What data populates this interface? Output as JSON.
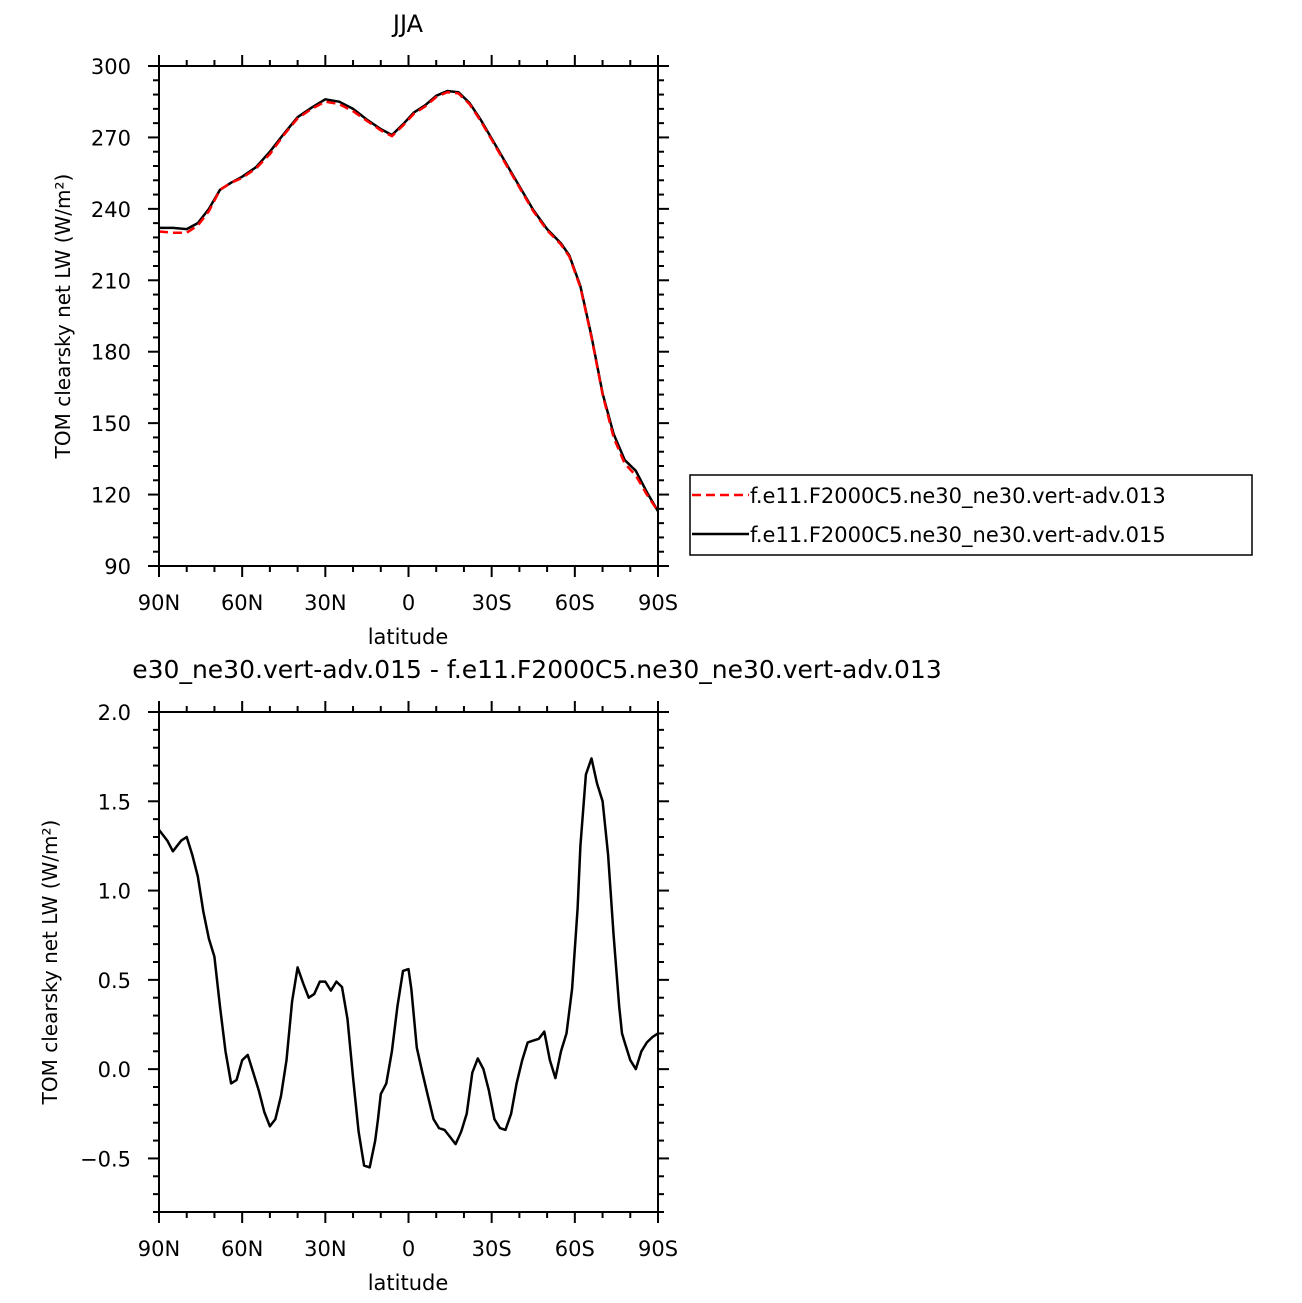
{
  "chart_data": [
    {
      "type": "line",
      "title": "JJA",
      "xlabel": "latitude",
      "ylabel": "TOM clearsky net LW (W/m²)",
      "xlim": [
        -90,
        90
      ],
      "ylim": [
        90,
        300
      ],
      "x_direction": "90N on left, 90S on right (x = degrees south positive)",
      "x_ticks": [
        -90,
        -60,
        -30,
        0,
        30,
        60,
        90
      ],
      "x_tick_labels": [
        "90N",
        "60N",
        "30N",
        "0",
        "30S",
        "60S",
        "90S"
      ],
      "y_ticks": [
        90,
        120,
        150,
        180,
        210,
        240,
        270,
        300
      ],
      "y_tick_labels": [
        "90",
        "120",
        "150",
        "180",
        "210",
        "240",
        "270",
        "300"
      ],
      "legend_position": "right",
      "series": [
        {
          "name": "f.e11.F2000C5.ne30_ne30.vert-adv.013",
          "color": "#ff0000",
          "dash": "dashed",
          "x": [
            -90,
            -85,
            -80,
            -76,
            -72,
            -68,
            -64,
            -60,
            -55,
            -50,
            -45,
            -40,
            -35,
            -30,
            -25,
            -20,
            -15,
            -10,
            -6,
            -2,
            2,
            6,
            10,
            14,
            18,
            22,
            26,
            30,
            35,
            40,
            45,
            50,
            55,
            58,
            62,
            66,
            70,
            74,
            78,
            82,
            86,
            90
          ],
          "y": [
            230.5,
            230,
            230,
            233,
            239,
            248,
            251,
            253,
            257,
            263,
            271,
            278,
            282,
            285,
            284,
            281,
            277,
            273,
            270.5,
            275,
            280,
            283,
            287,
            289,
            288.5,
            284,
            277,
            269,
            259,
            249,
            239,
            231,
            225,
            220,
            207,
            186,
            162,
            144,
            133,
            128,
            120,
            113
          ]
        },
        {
          "name": "f.e11.F2000C5.ne30_ne30.vert-adv.015",
          "color": "#000000",
          "dash": "solid",
          "x": [
            -90,
            -85,
            -80,
            -76,
            -72,
            -68,
            -64,
            -60,
            -55,
            -50,
            -45,
            -40,
            -35,
            -30,
            -25,
            -20,
            -15,
            -10,
            -6,
            -2,
            2,
            6,
            10,
            14,
            18,
            22,
            26,
            30,
            35,
            40,
            45,
            50,
            55,
            58,
            62,
            66,
            70,
            74,
            78,
            82,
            86,
            90
          ],
          "y": [
            232,
            232,
            231.5,
            234,
            240,
            248,
            251,
            253.5,
            257.5,
            264,
            271.5,
            278.5,
            282.5,
            286,
            285,
            282,
            277.5,
            273.5,
            271,
            275.5,
            280.5,
            283.5,
            287.5,
            289.5,
            289,
            284.5,
            277.5,
            269.5,
            259.5,
            249.5,
            239.5,
            231.5,
            225.5,
            220.5,
            207.5,
            186.5,
            162.5,
            145.5,
            134.5,
            130,
            121,
            113
          ]
        }
      ]
    },
    {
      "type": "line",
      "title": "e30_ne30.vert-adv.015 - f.e11.F2000C5.ne30_ne30.vert-adv.013",
      "xlabel": "latitude",
      "ylabel": "TOM clearsky net LW (W/m²)",
      "xlim": [
        -90,
        90
      ],
      "ylim": [
        -0.8,
        2.0
      ],
      "x_direction": "90N on left, 90S on right (x = degrees south positive)",
      "x_ticks": [
        -90,
        -60,
        -30,
        0,
        30,
        60,
        90
      ],
      "x_tick_labels": [
        "90N",
        "60N",
        "30N",
        "0",
        "30S",
        "60S",
        "90S"
      ],
      "y_ticks": [
        -0.5,
        0.0,
        0.5,
        1.0,
        1.5,
        2.0
      ],
      "y_tick_labels": [
        "−0.5",
        "0.0",
        "0.5",
        "1.0",
        "1.5",
        "2.0"
      ],
      "series": [
        {
          "color": "#000000",
          "dash": "solid",
          "x": [
            -90,
            -87,
            -85,
            -82,
            -80,
            -78,
            -76,
            -75,
            -74,
            -72,
            -70,
            -68,
            -66,
            -64,
            -62,
            -60,
            -58,
            -56,
            -54,
            -52,
            -50,
            -48,
            -46,
            -44,
            -42,
            -40,
            -38,
            -36,
            -34,
            -32,
            -30,
            -28,
            -26,
            -24,
            -22,
            -20,
            -18,
            -16,
            -14,
            -12,
            -11,
            -10,
            -8,
            -6,
            -4,
            -2,
            0,
            1,
            3,
            5,
            7,
            9,
            11,
            13,
            15,
            17,
            19,
            21,
            23,
            25,
            27,
            29,
            31,
            33,
            35,
            37,
            39,
            41,
            43,
            45,
            47,
            49,
            51,
            53,
            55,
            57,
            59,
            61,
            62,
            64,
            66,
            68,
            70,
            72,
            74,
            76,
            77,
            78,
            80,
            82,
            84,
            86,
            88,
            90
          ],
          "y": [
            1.34,
            1.28,
            1.22,
            1.28,
            1.3,
            1.2,
            1.08,
            0.98,
            0.88,
            0.73,
            0.63,
            0.35,
            0.1,
            -0.08,
            -0.06,
            0.05,
            0.08,
            -0.02,
            -0.12,
            -0.24,
            -0.32,
            -0.28,
            -0.15,
            0.05,
            0.38,
            0.57,
            0.48,
            0.4,
            0.42,
            0.49,
            0.49,
            0.44,
            0.49,
            0.46,
            0.28,
            -0.05,
            -0.35,
            -0.54,
            -0.55,
            -0.4,
            -0.28,
            -0.14,
            -0.08,
            0.1,
            0.35,
            0.55,
            0.56,
            0.45,
            0.12,
            -0.02,
            -0.15,
            -0.28,
            -0.33,
            -0.34,
            -0.38,
            -0.42,
            -0.35,
            -0.25,
            -0.02,
            0.06,
            0.0,
            -0.12,
            -0.28,
            -0.33,
            -0.34,
            -0.25,
            -0.08,
            0.05,
            0.15,
            0.16,
            0.17,
            0.21,
            0.05,
            -0.05,
            0.1,
            0.2,
            0.45,
            0.9,
            1.25,
            1.65,
            1.74,
            1.6,
            1.5,
            1.2,
            0.75,
            0.35,
            0.2,
            0.15,
            0.05,
            0.0,
            0.1,
            0.15,
            0.18,
            0.2
          ]
        }
      ]
    }
  ]
}
